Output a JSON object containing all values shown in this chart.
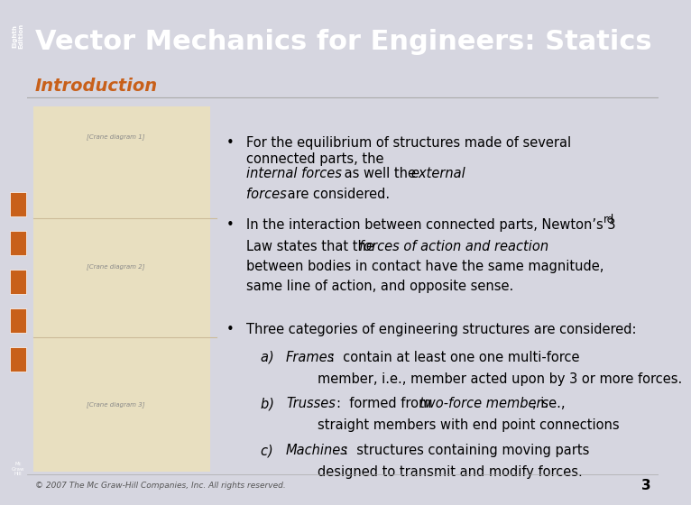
{
  "title": "Vector Mechanics for Engineers: Statics",
  "subtitle": "Introduction",
  "edition_text": "Eighth\nEdition",
  "header_bg": "#3a5275",
  "header_text_color": "#ffffff",
  "sidebar_bg": "#c8601a",
  "body_bg": "#d6d6e0",
  "subtitle_color": "#c8601a",
  "footer_text": "© 2007 The Mc Graw-Hill Companies, Inc. All rights reserved.",
  "footer_color": "#555555",
  "page_number": "3",
  "bullet1_normal": "For the equilibrium of structures made of several\nconnected parts, the ",
  "bullet1_italic1": "internal forces",
  "bullet1_mid": " as well the ",
  "bullet1_italic2": "external\nforces",
  "bullet1_end": " are considered.",
  "bullet2_normal1": "In the interaction between connected parts, Newton’s 3",
  "bullet2_sup": "rd",
  "bullet2_normal2": "\nLaw states that the ",
  "bullet2_italic": "forces of action and reaction",
  "bullet2_normal3": "\nbetween bodies in contact have the same magnitude,\nsame line of action, and opposite sense.",
  "bullet3_intro": "Three categories of engineering structures are considered:",
  "bullet3a_label": "a) ",
  "bullet3a_italic": "Frames",
  "bullet3a_text": ":  contain at least one one multi-force\n        member, i.e., member acted upon by 3 or more forces.",
  "bullet3b_label": "b) ",
  "bullet3b_italic": "Trusses",
  "bullet3b_text": ":  formed from ",
  "bullet3b_italic2": "two-force members",
  "bullet3b_text2": ", i.e.,\n        straight members with end point connections",
  "bullet3c_label": "c) ",
  "bullet3c_italic": "Machines",
  "bullet3c_text": ":  structures containing moving parts\n        designed to transmit and modify forces.",
  "title_fontsize": 22,
  "subtitle_fontsize": 14,
  "body_fontsize": 10.5
}
